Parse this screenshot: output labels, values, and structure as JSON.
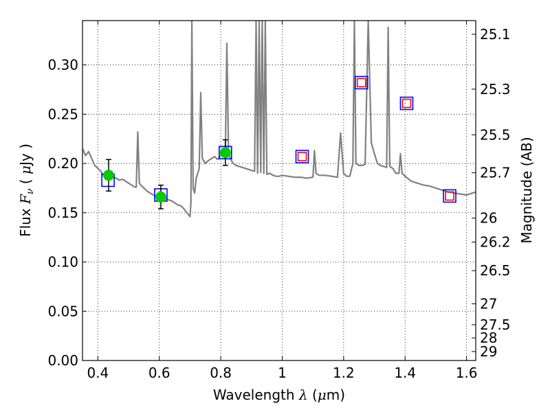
{
  "chart_data": {
    "type": "line",
    "xlabel_text": "Wavelength",
    "xlabel_symbol": "λ",
    "xlabel_unit_open": " (",
    "xlabel_unit_mu": "μ",
    "xlabel_unit_close": "m)",
    "ylabel_text": "Flux",
    "ylabel_symbol": "F",
    "ylabel_symbol_sub": "ν",
    "ylabel_unit_open": " ( ",
    "ylabel_unit_mu": "μ",
    "ylabel_unit_close": "Jy )",
    "y2label": "Magnitude (AB)",
    "xlim": [
      0.35,
      1.63
    ],
    "ylim": [
      0.0,
      0.345
    ],
    "x_ticks": [
      0.4,
      0.6,
      0.8,
      1.0,
      1.2,
      1.4,
      1.6
    ],
    "x_tick_labels": [
      "0.4",
      "0.6",
      "0.8",
      "1",
      "1.2",
      "1.4",
      "1.6"
    ],
    "y_ticks": [
      0.0,
      0.05,
      0.1,
      0.15,
      0.2,
      0.25,
      0.3
    ],
    "y_tick_labels": [
      "0.00",
      "0.05",
      "0.10",
      "0.15",
      "0.20",
      "0.25",
      "0.30"
    ],
    "mag_ticks": [
      "25.1",
      "25.3",
      "25.5",
      "25.7",
      "26",
      "26.2",
      "26.5",
      "27",
      "27.5",
      "28",
      "29"
    ],
    "grid": true,
    "colors": {
      "spectrum": "#808080",
      "model_box": "#0000ff",
      "observed_point": "#00cc00",
      "upper_box": "#ff0000",
      "errorbar": "#000000"
    },
    "series": [
      {
        "name": "model spectrum",
        "type": "line",
        "x": [
          0.35,
          0.36,
          0.37,
          0.38,
          0.39,
          0.4,
          0.41,
          0.42,
          0.43,
          0.44,
          0.45,
          0.46,
          0.47,
          0.48,
          0.49,
          0.5,
          0.51,
          0.52,
          0.525,
          0.53,
          0.535,
          0.54,
          0.55,
          0.56,
          0.57,
          0.58,
          0.59,
          0.6,
          0.61,
          0.62,
          0.63,
          0.64,
          0.65,
          0.66,
          0.67,
          0.68,
          0.69,
          0.7,
          0.703,
          0.706,
          0.71,
          0.715,
          0.72,
          0.73,
          0.735,
          0.74,
          0.75,
          0.76,
          0.77,
          0.78,
          0.79,
          0.8,
          0.81,
          0.815,
          0.82,
          0.825,
          0.83,
          0.84,
          0.85,
          0.86,
          0.87,
          0.88,
          0.89,
          0.9,
          0.91,
          0.915,
          0.92,
          0.925,
          0.93,
          0.935,
          0.94,
          0.945,
          0.95,
          0.96,
          0.97,
          0.98,
          0.99,
          1.0,
          1.02,
          1.04,
          1.06,
          1.08,
          1.1,
          1.105,
          1.11,
          1.12,
          1.14,
          1.16,
          1.18,
          1.19,
          1.2,
          1.21,
          1.22,
          1.23,
          1.235,
          1.24,
          1.25,
          1.26,
          1.27,
          1.28,
          1.29,
          1.3,
          1.31,
          1.32,
          1.33,
          1.34,
          1.345,
          1.35,
          1.36,
          1.37,
          1.38,
          1.385,
          1.39,
          1.4,
          1.42,
          1.44,
          1.46,
          1.48,
          1.5,
          1.52,
          1.54,
          1.56,
          1.58,
          1.6,
          1.62,
          1.63
        ],
        "y": [
          0.215,
          0.208,
          0.212,
          0.205,
          0.198,
          0.195,
          0.192,
          0.187,
          0.19,
          0.188,
          0.186,
          0.185,
          0.183,
          0.184,
          0.182,
          0.18,
          0.178,
          0.176,
          0.176,
          0.232,
          0.18,
          0.178,
          0.175,
          0.172,
          0.17,
          0.168,
          0.167,
          0.166,
          0.166,
          0.164,
          0.163,
          0.162,
          0.16,
          0.158,
          0.157,
          0.154,
          0.15,
          0.146,
          0.16,
          0.345,
          0.175,
          0.17,
          0.185,
          0.195,
          0.272,
          0.205,
          0.2,
          0.203,
          0.205,
          0.207,
          0.204,
          0.208,
          0.21,
          0.212,
          0.322,
          0.215,
          0.206,
          0.2,
          0.198,
          0.197,
          0.196,
          0.195,
          0.194,
          0.193,
          0.192,
          0.345,
          0.19,
          0.345,
          0.191,
          0.345,
          0.19,
          0.345,
          0.189,
          0.19,
          0.188,
          0.187,
          0.187,
          0.188,
          0.187,
          0.186,
          0.186,
          0.185,
          0.186,
          0.213,
          0.19,
          0.188,
          0.188,
          0.187,
          0.186,
          0.231,
          0.19,
          0.187,
          0.187,
          0.2,
          0.345,
          0.2,
          0.198,
          0.198,
          0.199,
          0.345,
          0.221,
          0.21,
          0.2,
          0.198,
          0.197,
          0.196,
          0.338,
          0.197,
          0.195,
          0.19,
          0.19,
          0.21,
          0.19,
          0.187,
          0.182,
          0.18,
          0.178,
          0.177,
          0.175,
          0.173,
          0.171,
          0.17,
          0.169,
          0.168,
          0.17,
          0.171
        ]
      },
      {
        "name": "model photometry (blue squares)",
        "type": "scatter",
        "x": [
          0.433,
          0.605,
          0.815,
          1.065,
          1.258,
          1.405,
          1.545
        ],
        "y": [
          0.183,
          0.168,
          0.211,
          0.207,
          0.282,
          0.261,
          0.167
        ]
      },
      {
        "name": "observed photometry (green points)",
        "type": "scatter",
        "x": [
          0.435,
          0.605,
          0.815
        ],
        "y": [
          0.188,
          0.166,
          0.211
        ],
        "yerr": [
          0.016,
          0.012,
          0.013
        ]
      },
      {
        "name": "upper limits (red squares)",
        "type": "scatter",
        "x": [
          1.065,
          1.258,
          1.405,
          1.545
        ],
        "y": [
          0.207,
          0.282,
          0.261,
          0.167
        ]
      }
    ]
  }
}
